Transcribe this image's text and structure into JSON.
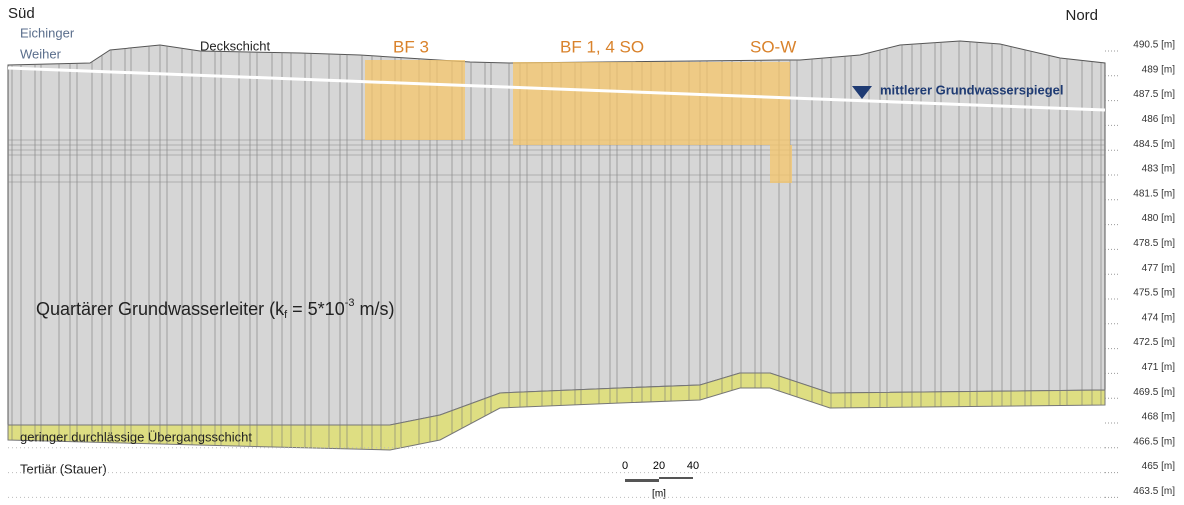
{
  "header": {
    "left": "Süd",
    "right": "Nord"
  },
  "labels": {
    "lake": [
      "Eichinger",
      "Weiher"
    ],
    "cover": "Deckschicht",
    "bf3": "BF 3",
    "bf14": "BF 1, 4 SO",
    "sow": "SO-W",
    "groundwater": "mittlerer Grundwasserspiegel",
    "aquifer": [
      "Quartärer Grundwasserleiter (k",
      "f",
      " = 5*10",
      "-3",
      " m/s)"
    ],
    "transition": "geringer durchlässige Übergangsschicht",
    "tertiary": "Tertiär (Stauer)"
  },
  "scale": {
    "ticks": [
      "0",
      "20",
      "40"
    ],
    "unit": "[m]"
  },
  "elevations": [
    "490.5 [m]",
    "489 [m]",
    "487.5 [m]",
    "486 [m]",
    "484.5 [m]",
    "483 [m]",
    "481.5 [m]",
    "480 [m]",
    "478.5 [m]",
    "477 [m]",
    "475.5 [m]",
    "474 [m]",
    "472.5 [m]",
    "471 [m]",
    "469.5 [m]",
    "468 [m]",
    "466.5 [m]",
    "465 [m]",
    "463.5 [m]"
  ]
}
